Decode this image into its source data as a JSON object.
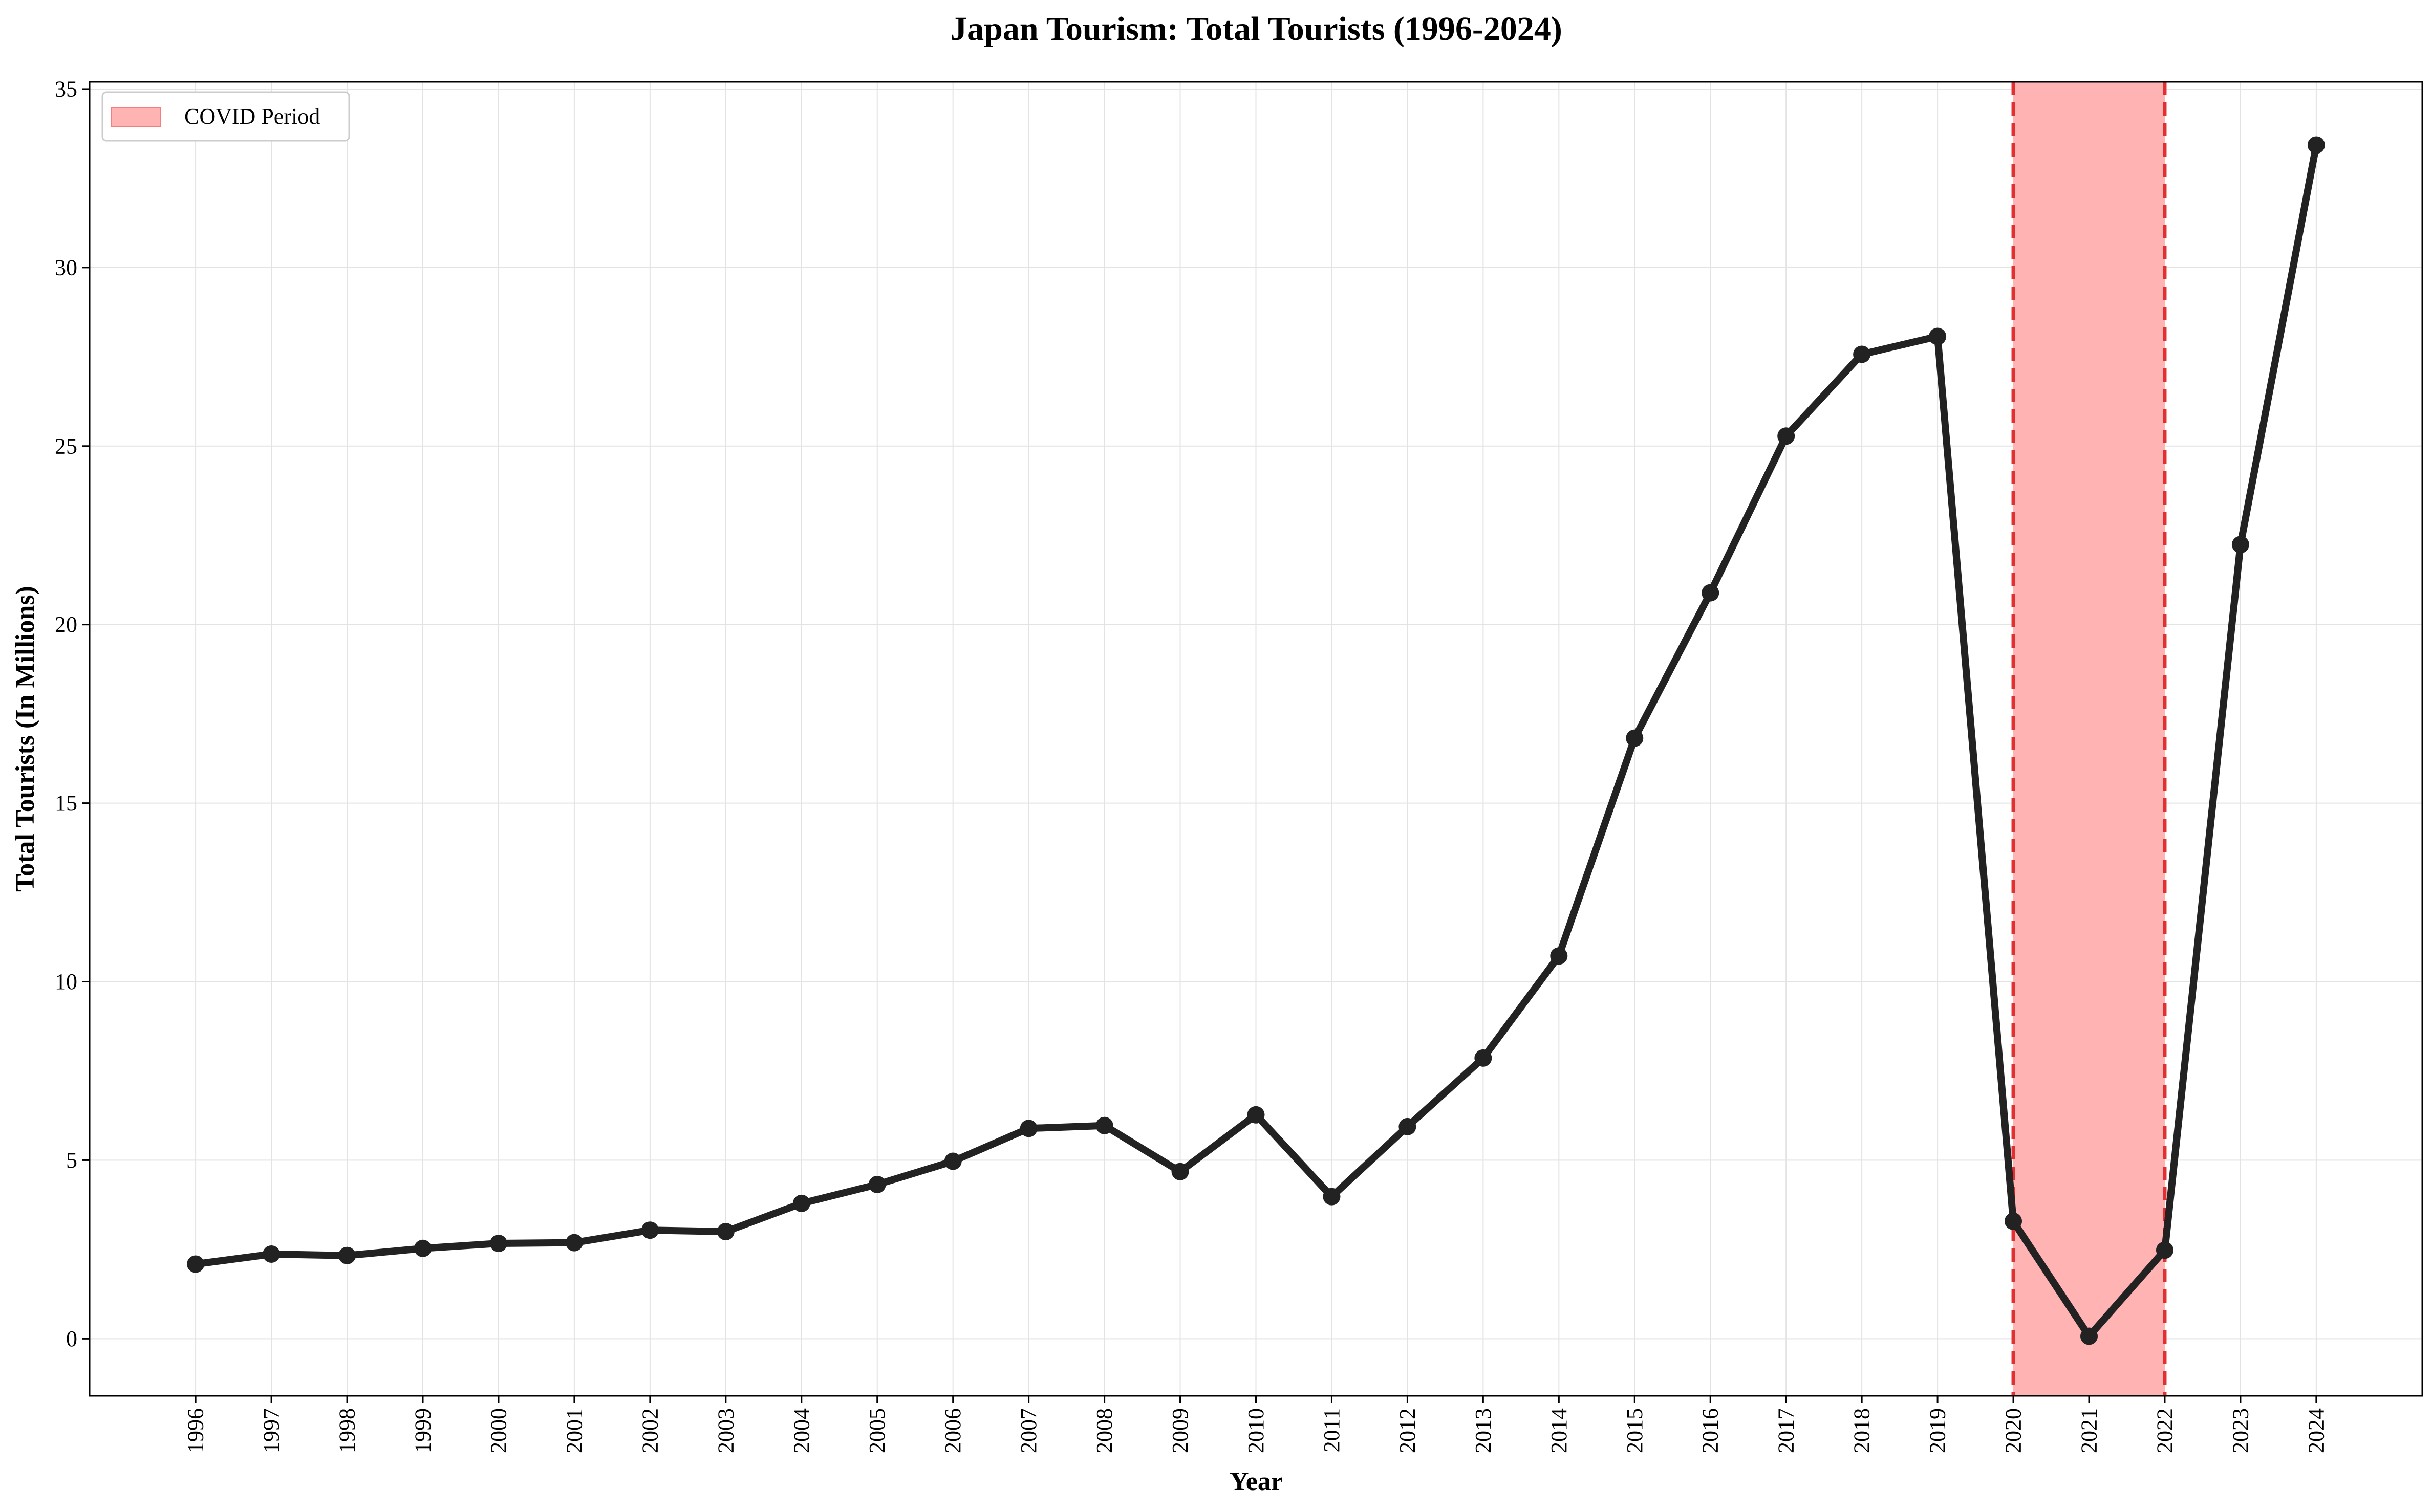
{
  "chart_data": {
    "type": "line",
    "title": "Japan Tourism: Total Tourists (1996-2024)",
    "xlabel": "Year",
    "ylabel": "Total Tourists (In Millions)",
    "x": [
      1996,
      1997,
      1998,
      1999,
      2000,
      2001,
      2002,
      2003,
      2004,
      2005,
      2006,
      2007,
      2008,
      2009,
      2010,
      2011,
      2012,
      2013,
      2014,
      2015,
      2016,
      2017,
      2018,
      2019,
      2020,
      2021,
      2022,
      2023,
      2024
    ],
    "series": [
      {
        "values": [
          2.09,
          2.37,
          2.33,
          2.53,
          2.67,
          2.69,
          3.04,
          3.0,
          3.79,
          4.32,
          4.97,
          5.89,
          5.97,
          4.68,
          6.27,
          3.98,
          5.94,
          7.86,
          10.72,
          16.82,
          20.89,
          25.28,
          27.57,
          28.07,
          3.29,
          0.07,
          2.48,
          22.24,
          33.43
        ],
        "color": "#222222"
      }
    ],
    "y_ticks": [
      0,
      5,
      10,
      15,
      20,
      25,
      30,
      35
    ],
    "ylim": [
      -1.6,
      35.2
    ],
    "xlim": [
      1994.6,
      2025.4
    ],
    "grid": true,
    "covid_period": {
      "label": "COVID Period",
      "start": 2020,
      "end": 2022,
      "fill_color": "#ffb3b3",
      "line_color": "#e03030"
    },
    "legend_position": "top-left"
  }
}
